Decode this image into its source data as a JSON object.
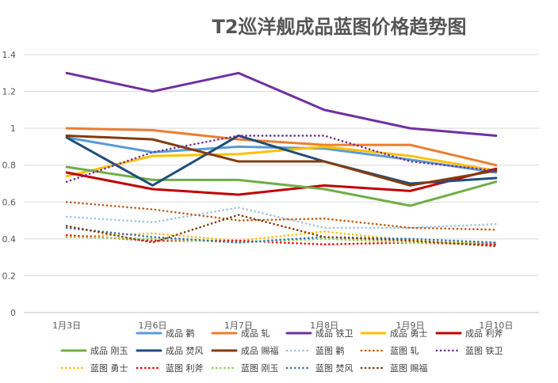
{
  "chart_data": {
    "type": "line",
    "title": "T2巡洋舰成品蓝图价格趋势图",
    "xlabel": "",
    "ylabel": "",
    "categories": [
      "1月3日",
      "1月6日",
      "1月7日",
      "1月8日",
      "1月9日",
      "1月10日"
    ],
    "y_ticks": [
      "0",
      "0.2",
      "0.4",
      "0.6",
      "0.8",
      "1",
      "1.2",
      "1.4"
    ],
    "ylim": [
      0,
      1.4
    ],
    "grid": "horizontal",
    "legend_position": "bottom",
    "series": [
      {
        "name": "成品 鹳",
        "color": "#5B9BD5",
        "style": "solid",
        "values": [
          0.95,
          0.87,
          0.9,
          0.89,
          0.83,
          0.76
        ]
      },
      {
        "name": "成品 轧",
        "color": "#ED7D31",
        "style": "solid",
        "values": [
          1.0,
          0.99,
          0.94,
          0.91,
          0.91,
          0.8
        ]
      },
      {
        "name": "成品 铁卫",
        "color": "#7030A0",
        "style": "solid",
        "values": [
          1.3,
          1.2,
          1.3,
          1.1,
          1.0,
          0.96
        ]
      },
      {
        "name": "成品 勇士",
        "color": "#FFC000",
        "style": "solid",
        "values": [
          0.74,
          0.85,
          0.86,
          0.9,
          0.85,
          0.77
        ]
      },
      {
        "name": "成品 利斧",
        "color": "#C00000",
        "style": "solid",
        "values": [
          0.76,
          0.67,
          0.64,
          0.69,
          0.66,
          0.78
        ]
      },
      {
        "name": "成品 刚玉",
        "color": "#70AD47",
        "style": "solid",
        "values": [
          0.79,
          0.72,
          0.72,
          0.67,
          0.58,
          0.71
        ]
      },
      {
        "name": "成品 焚风",
        "color": "#1F4E79",
        "style": "solid",
        "values": [
          0.95,
          0.69,
          0.96,
          0.82,
          0.7,
          0.73
        ]
      },
      {
        "name": "成品 赐福",
        "color": "#843C0C",
        "style": "solid",
        "values": [
          0.96,
          0.94,
          0.82,
          0.82,
          0.69,
          0.77
        ]
      },
      {
        "name": "蓝图 鹳",
        "color": "#9DC3E6",
        "style": "dotted",
        "values": [
          0.52,
          0.49,
          0.57,
          0.46,
          0.46,
          0.48
        ]
      },
      {
        "name": "蓝图 轧",
        "color": "#C55A11",
        "style": "dotted",
        "values": [
          0.6,
          0.56,
          0.5,
          0.51,
          0.46,
          0.45
        ]
      },
      {
        "name": "蓝图 铁卫",
        "color": "#7030A0",
        "style": "dotted",
        "values": [
          0.71,
          0.87,
          0.96,
          0.96,
          0.82,
          0.77
        ]
      },
      {
        "name": "蓝图 勇士",
        "color": "#FFC000",
        "style": "dotted",
        "values": [
          0.41,
          0.43,
          0.39,
          0.44,
          0.39,
          0.37
        ]
      },
      {
        "name": "蓝图 利斧",
        "color": "#FF0000",
        "style": "dotted",
        "values": [
          0.42,
          0.39,
          0.39,
          0.37,
          0.38,
          0.37
        ]
      },
      {
        "name": "蓝图 刚玉",
        "color": "#92D050",
        "style": "dotted",
        "values": [
          0.41,
          0.4,
          0.38,
          0.4,
          0.38,
          0.38
        ]
      },
      {
        "name": "蓝图 焚风",
        "color": "#2E75B6",
        "style": "dotted",
        "values": [
          0.46,
          0.41,
          0.38,
          0.41,
          0.4,
          0.38
        ]
      },
      {
        "name": "蓝图 赐福",
        "color": "#843C0C",
        "style": "dotted",
        "values": [
          0.47,
          0.38,
          0.53,
          0.41,
          0.39,
          0.36
        ]
      }
    ]
  }
}
